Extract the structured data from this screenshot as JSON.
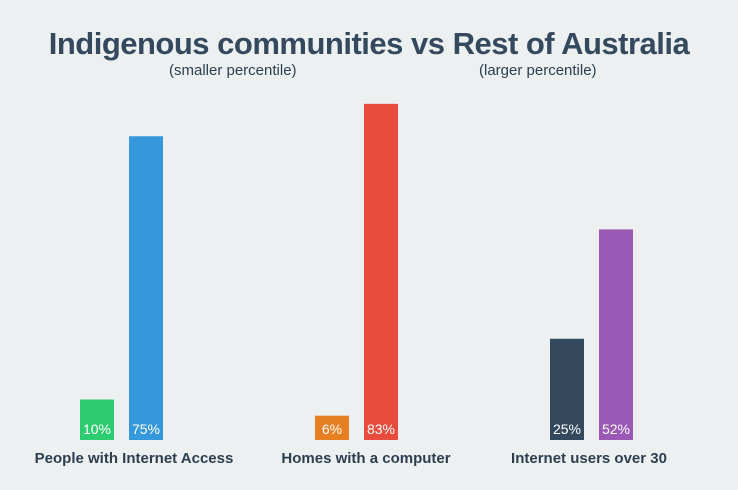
{
  "chart_data": {
    "type": "bar",
    "title": "Indigenous communities vs Rest of Australia",
    "subtitle_left": "(smaller percentile)",
    "subtitle_right": "(larger percentile)",
    "categories": [
      "People with Internet Access",
      "Homes with a computer",
      "Internet users over 30"
    ],
    "unit": "%",
    "ylim": [
      0,
      100
    ],
    "grid": false,
    "bars": [
      {
        "category": "People with Internet Access",
        "value": 10,
        "label": "10%",
        "color": "#2ecc71"
      },
      {
        "category": "People with Internet Access",
        "value": 75,
        "label": "75%",
        "color": "#3498db"
      },
      {
        "category": "Homes with a computer",
        "value": 6,
        "label": "6%",
        "color": "#e67e22"
      },
      {
        "category": "Homes with a computer",
        "value": 83,
        "label": "83%",
        "color": "#e74c3c"
      },
      {
        "category": "Internet users over 30",
        "value": 25,
        "label": "25%",
        "color": "#34495e"
      },
      {
        "category": "Internet users over 30",
        "value": 52,
        "label": "52%",
        "color": "#9b59b6"
      }
    ]
  },
  "colors": {
    "background": "#ecf0f1",
    "title": "#34495e",
    "category_label": "#2c3e50",
    "bar_label": "#ffffff"
  }
}
